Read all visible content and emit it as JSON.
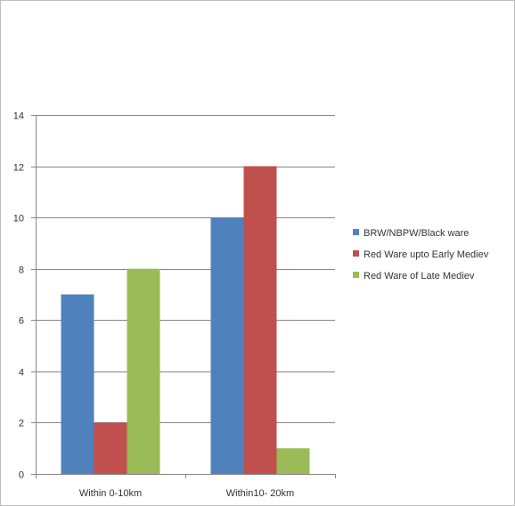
{
  "chart_data": {
    "type": "bar",
    "title": "",
    "xlabel": "",
    "ylabel": "",
    "categories": [
      "Within 0-10km",
      "Within10- 20km"
    ],
    "series": [
      {
        "name": "BRW/NBPW/Black ware",
        "values": [
          7,
          10
        ],
        "color": "#4f81bd"
      },
      {
        "name": "Red Ware upto Early Mediev",
        "values": [
          2,
          12
        ],
        "color": "#c0504d"
      },
      {
        "name": "Red Ware of Late Mediev",
        "values": [
          8,
          1
        ],
        "color": "#9bbb59"
      }
    ],
    "ylim": [
      0,
      14
    ],
    "yticks": [
      "0",
      "2",
      "4",
      "6",
      "8",
      "10",
      "12",
      "14"
    ],
    "grid": true,
    "legend": "right"
  }
}
